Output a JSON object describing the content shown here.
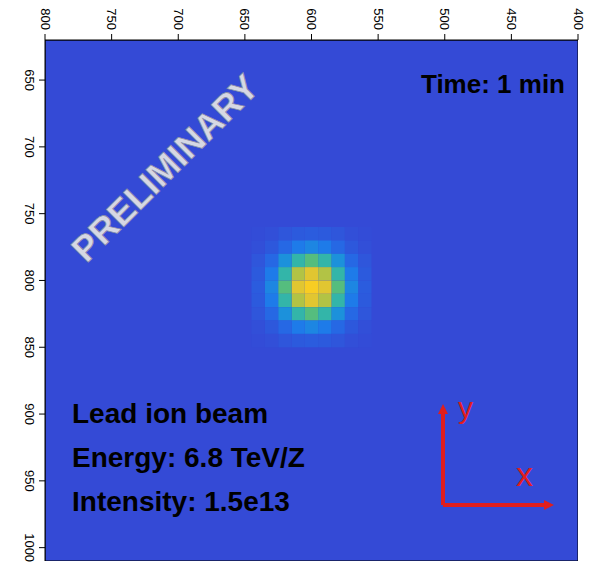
{
  "chart_data": {
    "type": "heatmap",
    "xlim": [
      800,
      400
    ],
    "xticks": [
      400,
      450,
      500,
      550,
      600,
      650,
      700,
      750,
      800
    ],
    "ylim": [
      1010,
      620
    ],
    "yticks": [
      650,
      700,
      750,
      800,
      850,
      900,
      950,
      1000
    ],
    "heatmap": {
      "background": 0,
      "x": [
        560,
        570,
        580,
        590,
        600,
        610,
        620,
        630,
        640
      ],
      "y": [
        765,
        775,
        785,
        795,
        805,
        815,
        825,
        835,
        845
      ],
      "values": [
        [
          0.01,
          0.02,
          0.05,
          0.07,
          0.08,
          0.07,
          0.05,
          0.02,
          0.01
        ],
        [
          0.02,
          0.06,
          0.13,
          0.21,
          0.25,
          0.21,
          0.13,
          0.06,
          0.02
        ],
        [
          0.05,
          0.13,
          0.29,
          0.46,
          0.54,
          0.46,
          0.29,
          0.13,
          0.05
        ],
        [
          0.07,
          0.21,
          0.46,
          0.73,
          0.86,
          0.73,
          0.46,
          0.21,
          0.07
        ],
        [
          0.08,
          0.25,
          0.54,
          0.86,
          1.0,
          0.86,
          0.54,
          0.25,
          0.08
        ],
        [
          0.07,
          0.21,
          0.46,
          0.73,
          0.86,
          0.73,
          0.46,
          0.21,
          0.07
        ],
        [
          0.05,
          0.13,
          0.29,
          0.46,
          0.54,
          0.46,
          0.29,
          0.13,
          0.05
        ],
        [
          0.02,
          0.06,
          0.13,
          0.21,
          0.25,
          0.21,
          0.13,
          0.06,
          0.02
        ],
        [
          0.01,
          0.02,
          0.05,
          0.07,
          0.08,
          0.07,
          0.05,
          0.02,
          0.01
        ]
      ]
    },
    "annotations": {
      "watermark": "PRELIMINARY",
      "time": "Time: 1 min",
      "info": [
        "Lead ion beam",
        "Energy: 6.8 TeV/Z",
        "Intensity: 1.5e13"
      ],
      "arrows": [
        "y",
        "x"
      ]
    }
  }
}
